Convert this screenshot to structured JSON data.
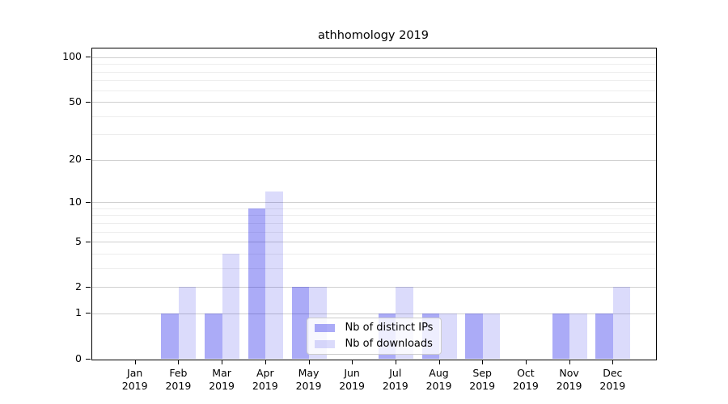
{
  "chart_data": {
    "type": "bar",
    "title": "athhomology 2019",
    "categories": [
      {
        "month": "Jan",
        "year": "2019"
      },
      {
        "month": "Feb",
        "year": "2019"
      },
      {
        "month": "Mar",
        "year": "2019"
      },
      {
        "month": "Apr",
        "year": "2019"
      },
      {
        "month": "May",
        "year": "2019"
      },
      {
        "month": "Jun",
        "year": "2019"
      },
      {
        "month": "Jul",
        "year": "2019"
      },
      {
        "month": "Aug",
        "year": "2019"
      },
      {
        "month": "Sep",
        "year": "2019"
      },
      {
        "month": "Oct",
        "year": "2019"
      },
      {
        "month": "Nov",
        "year": "2019"
      },
      {
        "month": "Dec",
        "year": "2019"
      }
    ],
    "series": [
      {
        "name": "Nb of distinct IPs",
        "color": "rgba(0, 0, 230, 0.33)",
        "values": [
          0,
          1,
          1,
          9,
          2,
          0,
          1,
          1,
          1,
          0,
          1,
          1
        ]
      },
      {
        "name": "Nb of downloads",
        "color": "rgba(0, 0, 230, 0.14)",
        "values": [
          0,
          2,
          4,
          12,
          2,
          0,
          2,
          1,
          1,
          0,
          1,
          2
        ]
      }
    ],
    "xlabel": "",
    "ylabel": "",
    "y_axis": {
      "scale": "log1p",
      "tick_labels": [
        0,
        1,
        2,
        5,
        10,
        20,
        50,
        100
      ],
      "minor_gridlines": [
        3,
        4,
        6,
        7,
        8,
        9,
        30,
        40,
        60,
        70,
        80,
        90
      ],
      "range_max": 116
    },
    "grid": {
      "major_color": "#cfcfcf",
      "minor_color": "#ededed",
      "enabled": true
    },
    "axis_color": "#000000",
    "legend": {
      "position": "lower-center"
    }
  }
}
